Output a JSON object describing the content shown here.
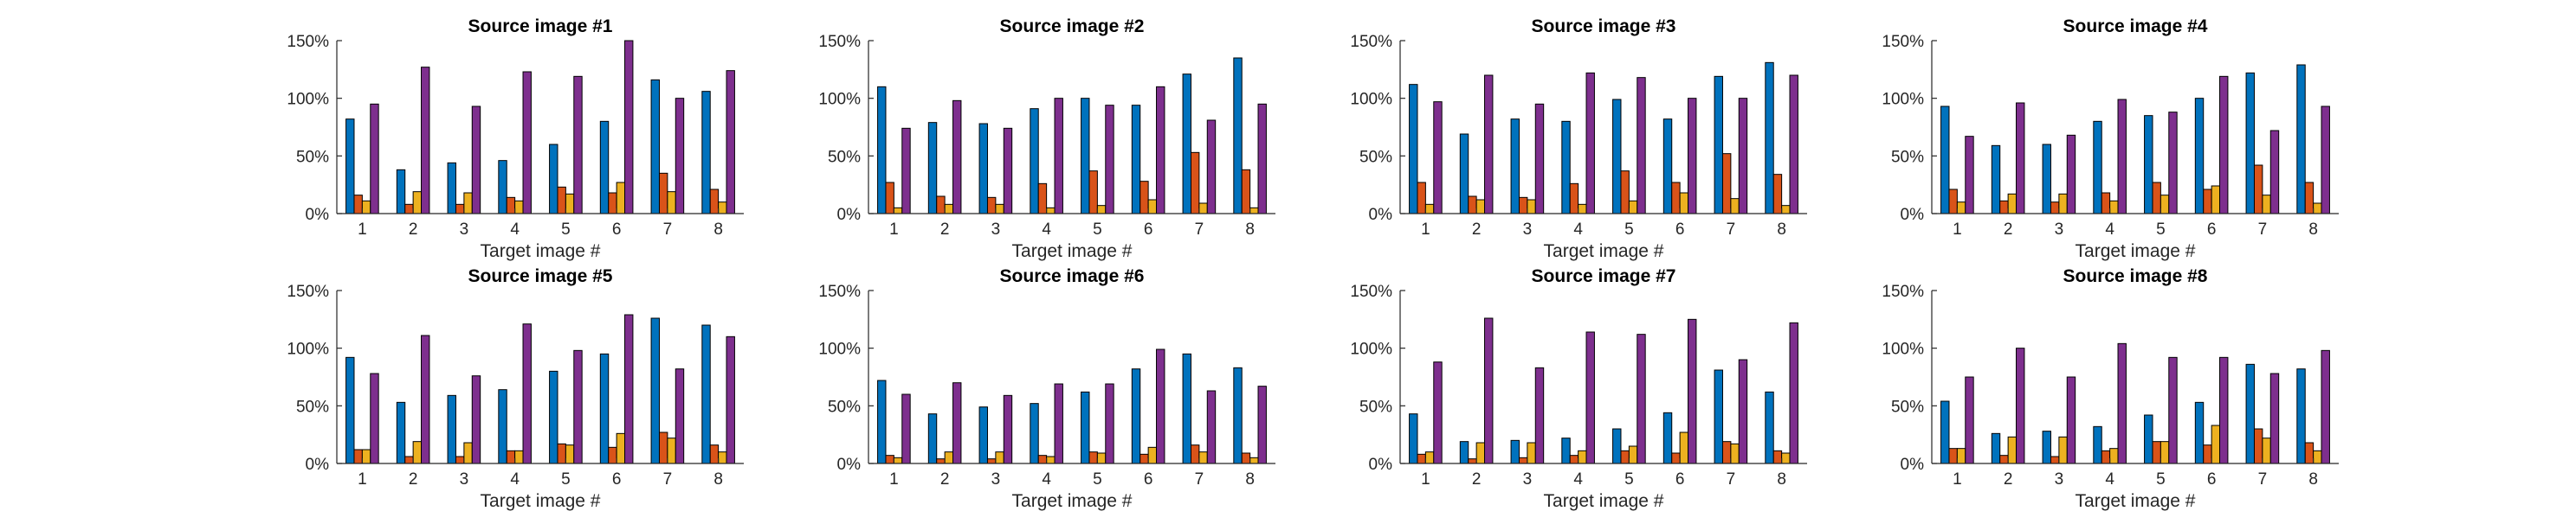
{
  "chart_data": [
    {
      "type": "bar",
      "title": "Source image #1",
      "xlabel": "Target image #",
      "ylabel": "",
      "ylim": [
        0,
        150
      ],
      "yticks": [
        "0%",
        "50%",
        "100%",
        "150%"
      ],
      "categories": [
        "1",
        "2",
        "3",
        "4",
        "5",
        "6",
        "7",
        "8"
      ],
      "series": [
        {
          "color": "#0072BD",
          "values": [
            82,
            38,
            44,
            46,
            60,
            80,
            116,
            106
          ]
        },
        {
          "color": "#D95319",
          "values": [
            16,
            8,
            8,
            14,
            23,
            18,
            35,
            21
          ]
        },
        {
          "color": "#EDB120",
          "values": [
            11,
            19,
            18,
            11,
            17,
            27,
            19,
            10
          ]
        },
        {
          "color": "#7E2F8E",
          "values": [
            95,
            127,
            93,
            123,
            119,
            150,
            100,
            124
          ]
        }
      ]
    },
    {
      "type": "bar",
      "title": "Source image #2",
      "xlabel": "Target image #",
      "ylabel": "",
      "ylim": [
        0,
        150
      ],
      "yticks": [
        "0%",
        "50%",
        "100%",
        "150%"
      ],
      "categories": [
        "1",
        "2",
        "3",
        "4",
        "5",
        "6",
        "7",
        "8"
      ],
      "series": [
        {
          "color": "#0072BD",
          "values": [
            110,
            79,
            78,
            91,
            100,
            94,
            121,
            135
          ]
        },
        {
          "color": "#D95319",
          "values": [
            27,
            15,
            14,
            26,
            37,
            28,
            53,
            38
          ]
        },
        {
          "color": "#EDB120",
          "values": [
            5,
            8,
            8,
            5,
            7,
            12,
            9,
            5
          ]
        },
        {
          "color": "#7E2F8E",
          "values": [
            74,
            98,
            74,
            100,
            94,
            110,
            81,
            95
          ]
        }
      ]
    },
    {
      "type": "bar",
      "title": "Source image #3",
      "xlabel": "Target image #",
      "ylabel": "",
      "ylim": [
        0,
        150
      ],
      "yticks": [
        "0%",
        "50%",
        "100%",
        "150%"
      ],
      "categories": [
        "1",
        "2",
        "3",
        "4",
        "5",
        "6",
        "7",
        "8"
      ],
      "series": [
        {
          "color": "#0072BD",
          "values": [
            112,
            69,
            82,
            80,
            99,
            82,
            119,
            131
          ]
        },
        {
          "color": "#D95319",
          "values": [
            27,
            15,
            14,
            26,
            37,
            27,
            52,
            34
          ]
        },
        {
          "color": "#EDB120",
          "values": [
            8,
            12,
            12,
            8,
            11,
            18,
            13,
            7
          ]
        },
        {
          "color": "#7E2F8E",
          "values": [
            97,
            120,
            95,
            122,
            118,
            100,
            100,
            120
          ]
        }
      ]
    },
    {
      "type": "bar",
      "title": "Source image #4",
      "xlabel": "Target image #",
      "ylabel": "",
      "ylim": [
        0,
        150
      ],
      "yticks": [
        "0%",
        "50%",
        "100%",
        "150%"
      ],
      "categories": [
        "1",
        "2",
        "3",
        "4",
        "5",
        "6",
        "7",
        "8"
      ],
      "series": [
        {
          "color": "#0072BD",
          "values": [
            93,
            59,
            60,
            80,
            85,
            100,
            122,
            129
          ]
        },
        {
          "color": "#D95319",
          "values": [
            21,
            11,
            10,
            18,
            27,
            21,
            42,
            27
          ]
        },
        {
          "color": "#EDB120",
          "values": [
            10,
            17,
            17,
            11,
            16,
            24,
            16,
            9
          ]
        },
        {
          "color": "#7E2F8E",
          "values": [
            67,
            96,
            68,
            99,
            88,
            119,
            72,
            93
          ]
        }
      ]
    },
    {
      "type": "bar",
      "title": "Source image #5",
      "xlabel": "Target image #",
      "ylabel": "",
      "ylim": [
        0,
        150
      ],
      "yticks": [
        "0%",
        "50%",
        "100%",
        "150%"
      ],
      "categories": [
        "1",
        "2",
        "3",
        "4",
        "5",
        "6",
        "7",
        "8"
      ],
      "series": [
        {
          "color": "#0072BD",
          "values": [
            92,
            53,
            59,
            64,
            80,
            95,
            126,
            120
          ]
        },
        {
          "color": "#D95319",
          "values": [
            12,
            6,
            6,
            11,
            17,
            14,
            27,
            16
          ]
        },
        {
          "color": "#EDB120",
          "values": [
            12,
            19,
            18,
            11,
            16,
            26,
            22,
            10
          ]
        },
        {
          "color": "#7E2F8E",
          "values": [
            78,
            111,
            76,
            121,
            98,
            129,
            82,
            110
          ]
        }
      ]
    },
    {
      "type": "bar",
      "title": "Source image #6",
      "xlabel": "Target image #",
      "ylabel": "",
      "ylim": [
        0,
        150
      ],
      "yticks": [
        "0%",
        "50%",
        "100%",
        "150%"
      ],
      "categories": [
        "1",
        "2",
        "3",
        "4",
        "5",
        "6",
        "7",
        "8"
      ],
      "series": [
        {
          "color": "#0072BD",
          "values": [
            72,
            43,
            49,
            52,
            62,
            82,
            95,
            83
          ]
        },
        {
          "color": "#D95319",
          "values": [
            7,
            4,
            4,
            7,
            10,
            8,
            16,
            9
          ]
        },
        {
          "color": "#EDB120",
          "values": [
            5,
            10,
            10,
            6,
            9,
            14,
            10,
            5
          ]
        },
        {
          "color": "#7E2F8E",
          "values": [
            60,
            70,
            59,
            69,
            69,
            99,
            63,
            67
          ]
        }
      ]
    },
    {
      "type": "bar",
      "title": "Source image #7",
      "xlabel": "Target image #",
      "ylabel": "",
      "ylim": [
        0,
        150
      ],
      "yticks": [
        "0%",
        "50%",
        "100%",
        "150%"
      ],
      "categories": [
        "1",
        "2",
        "3",
        "4",
        "5",
        "6",
        "7",
        "8"
      ],
      "series": [
        {
          "color": "#0072BD",
          "values": [
            43,
            19,
            20,
            22,
            30,
            44,
            81,
            62
          ]
        },
        {
          "color": "#D95319",
          "values": [
            8,
            4,
            5,
            7,
            11,
            9,
            19,
            11
          ]
        },
        {
          "color": "#EDB120",
          "values": [
            10,
            18,
            18,
            11,
            15,
            27,
            17,
            9
          ]
        },
        {
          "color": "#7E2F8E",
          "values": [
            88,
            126,
            83,
            114,
            112,
            125,
            90,
            122
          ]
        }
      ]
    },
    {
      "type": "bar",
      "title": "Source image #8",
      "xlabel": "Target image #",
      "ylabel": "",
      "ylim": [
        0,
        150
      ],
      "yticks": [
        "0%",
        "50%",
        "100%",
        "150%"
      ],
      "categories": [
        "1",
        "2",
        "3",
        "4",
        "5",
        "6",
        "7",
        "8"
      ],
      "series": [
        {
          "color": "#0072BD",
          "values": [
            54,
            26,
            28,
            32,
            42,
            53,
            86,
            82
          ]
        },
        {
          "color": "#D95319",
          "values": [
            13,
            7,
            6,
            11,
            19,
            16,
            30,
            18
          ]
        },
        {
          "color": "#EDB120",
          "values": [
            13,
            23,
            23,
            13,
            19,
            33,
            22,
            11
          ]
        },
        {
          "color": "#7E2F8E",
          "values": [
            75,
            100,
            75,
            104,
            92,
            92,
            78,
            98
          ]
        }
      ]
    }
  ]
}
